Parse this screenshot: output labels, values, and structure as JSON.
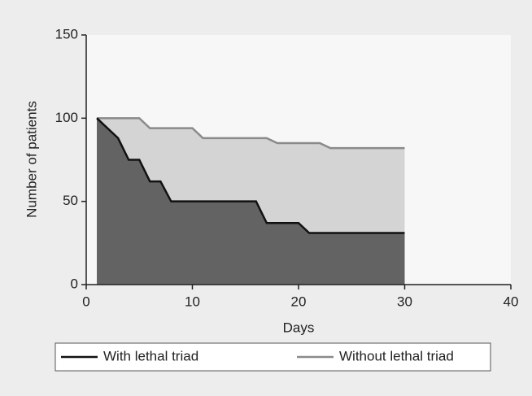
{
  "chart_data": {
    "type": "area",
    "x_label": "Days",
    "y_label": "Number of patients",
    "series": [
      {
        "name": "With lethal triad",
        "color": "#111111",
        "fill": "#636363",
        "x": [
          1,
          3,
          4,
          5,
          6,
          7,
          8,
          16,
          17,
          20,
          21,
          30
        ],
        "values": [
          100,
          88,
          75,
          75,
          62,
          62,
          50,
          50,
          37,
          37,
          31,
          31
        ]
      },
      {
        "name": "Without lethal triad",
        "color": "#8a8a8a",
        "fill": "#d4d4d4",
        "x": [
          1,
          5,
          6,
          10,
          11,
          17,
          18,
          22,
          23,
          30
        ],
        "values": [
          100,
          100,
          94,
          94,
          88,
          88,
          85,
          85,
          82,
          82
        ]
      }
    ],
    "xlim": [
      0,
      40
    ],
    "xticks": [
      0,
      10,
      20,
      30,
      40
    ],
    "ylim": [
      0,
      150
    ],
    "yticks": [
      0,
      50,
      100,
      150
    ],
    "legend": "bottom"
  }
}
